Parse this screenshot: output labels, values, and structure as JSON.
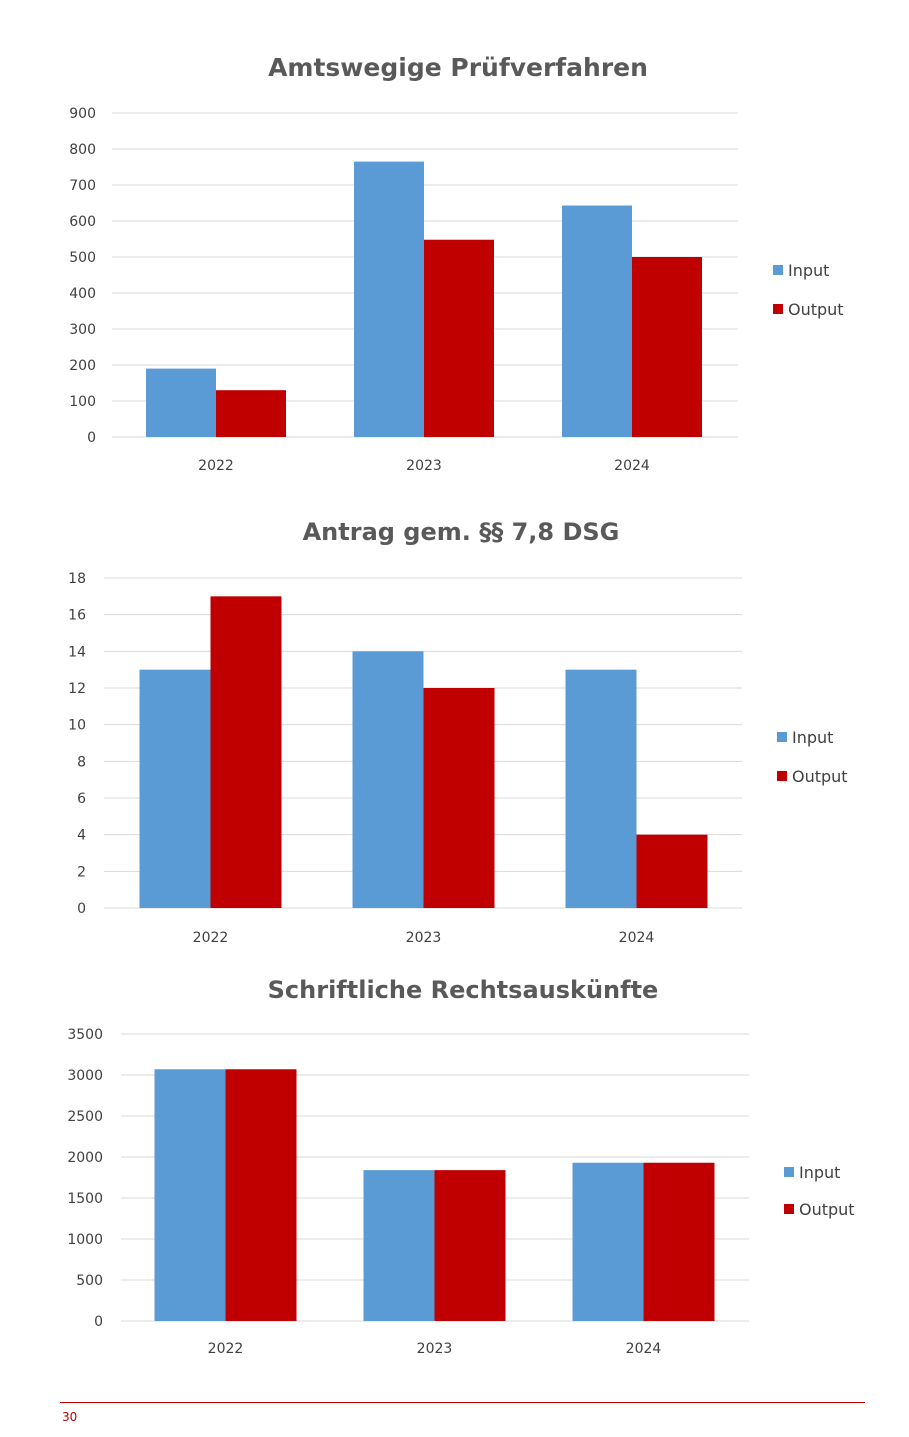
{
  "chart_data": [
    {
      "type": "bar",
      "title": "Amtswegige Prüfverfahren",
      "categories": [
        "2022",
        "2023",
        "2024"
      ],
      "series": [
        {
          "name": "Input",
          "values": [
            190,
            765,
            643
          ]
        },
        {
          "name": "Output",
          "values": [
            130,
            548,
            500
          ]
        }
      ],
      "ylim": [
        0,
        900
      ],
      "yticks": [
        "0",
        "100",
        "200",
        "300",
        "400",
        "500",
        "600",
        "700",
        "800",
        "900"
      ],
      "grid": true,
      "legend": "right"
    },
    {
      "type": "bar",
      "title": "Antrag gem. §§ 7,8 DSG",
      "categories": [
        "2022",
        "2023",
        "2024"
      ],
      "series": [
        {
          "name": "Input",
          "values": [
            13,
            14,
            13
          ]
        },
        {
          "name": "Output",
          "values": [
            17,
            12,
            4
          ]
        }
      ],
      "ylim": [
        0,
        18
      ],
      "yticks": [
        "0",
        "2",
        "4",
        "6",
        "8",
        "10",
        "12",
        "14",
        "16",
        "18"
      ],
      "grid": true,
      "legend": "right"
    },
    {
      "type": "bar",
      "title": "Schriftliche Rechtsauskünfte",
      "categories": [
        "2022",
        "2023",
        "2024"
      ],
      "series": [
        {
          "name": "Input",
          "values": [
            3070,
            1840,
            1930
          ]
        },
        {
          "name": "Output",
          "values": [
            3070,
            1840,
            1930
          ]
        }
      ],
      "ylim": [
        0,
        3500
      ],
      "yticks": [
        "0",
        "500",
        "1000",
        "1500",
        "2000",
        "2500",
        "3000",
        "3500"
      ],
      "grid": true,
      "legend": "right"
    }
  ],
  "colors": {
    "input": "#5b9bd5",
    "output": "#c00000",
    "grid": "#d9d9d9"
  },
  "footer": {
    "page_number": "30"
  }
}
